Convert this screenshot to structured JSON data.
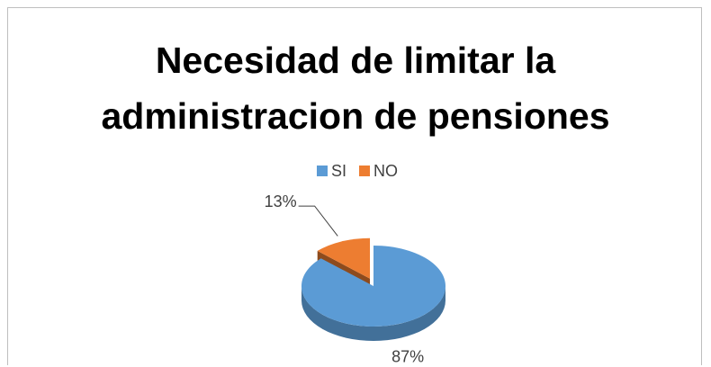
{
  "chart_data": {
    "type": "pie",
    "title": "Necesidad de limitar la administracion de pensiones",
    "categories": [
      "SI",
      "NO"
    ],
    "values": [
      87,
      13
    ],
    "value_labels": [
      "87%",
      "13%"
    ],
    "colors": [
      "#5b9bd5",
      "#ed7d31"
    ],
    "legend": "top"
  }
}
